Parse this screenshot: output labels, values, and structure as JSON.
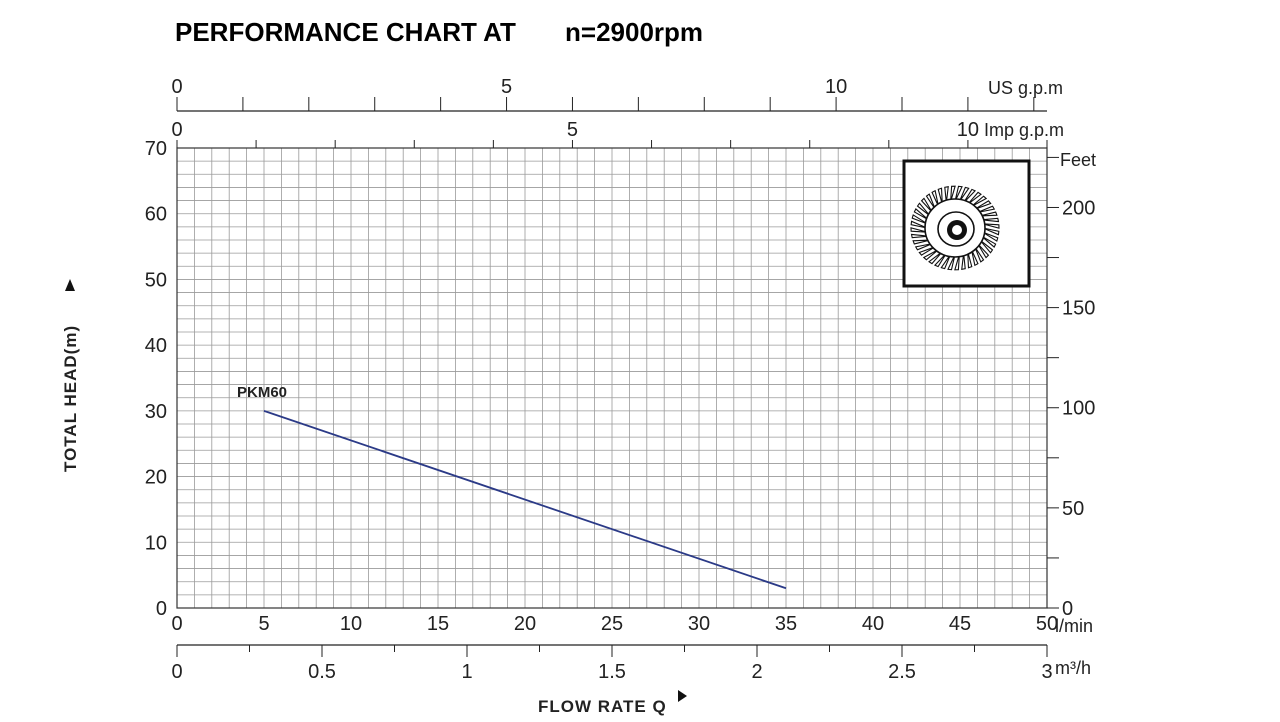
{
  "chart_data": {
    "type": "line",
    "title": "PERFORMANCE CHART AT",
    "subtitle": "n=2900rpm",
    "xlabel": "FLOW RATE Q",
    "ylabel": "TOTAL HEAD(m)",
    "xlim": [
      0,
      50
    ],
    "ylim": [
      0,
      70
    ],
    "grid": true,
    "x_unit": "l/min",
    "x_ticks": [
      0,
      5,
      10,
      15,
      20,
      25,
      30,
      35,
      40,
      45,
      50
    ],
    "y_ticks": [
      0,
      10,
      20,
      30,
      40,
      50,
      60,
      70
    ],
    "secondary_axes": {
      "us_gpm": {
        "unit": "US g.p.m",
        "ticks": [
          0,
          5,
          10
        ],
        "range": [
          0,
          13.2
        ]
      },
      "imp_gpm": {
        "unit": "Imp g.p.m",
        "ticks": [
          0,
          5,
          10
        ],
        "range": [
          0,
          11
        ]
      },
      "m3h": {
        "unit": "m³/h",
        "ticks": [
          "0",
          "0.5",
          "1",
          "1.5",
          "2",
          "2.5",
          "3"
        ],
        "range": [
          0,
          3
        ]
      },
      "feet": {
        "unit": "Feet",
        "ticks": [
          0,
          50,
          100,
          150,
          200
        ],
        "range": [
          0,
          229.7
        ]
      }
    },
    "series": [
      {
        "name": "PKM60",
        "color": "#2b3a87",
        "x": [
          5,
          35
        ],
        "y": [
          30,
          3
        ]
      }
    ]
  },
  "inset": {
    "icon": "impeller-icon"
  }
}
